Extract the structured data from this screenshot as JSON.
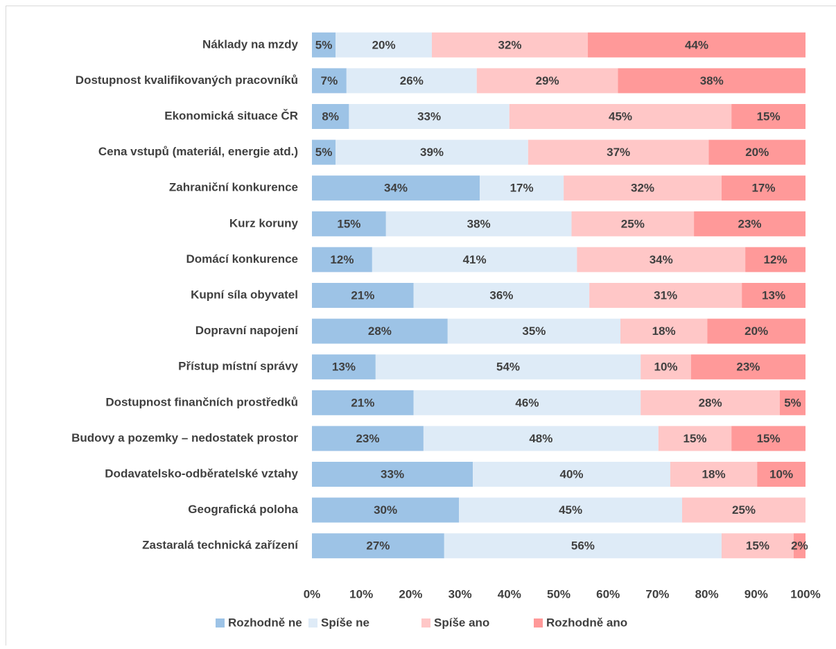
{
  "chart_data": {
    "type": "bar",
    "orientation": "horizontal",
    "stacked": true,
    "categories": [
      "Náklady na mzdy",
      "Dostupnost kvalifikovaných pracovníků",
      "Ekonomická situace ČR",
      "Cena vstupů (materiál, energie atd.)",
      "Zahraniční konkurence",
      "Kurz koruny",
      "Domácí konkurence",
      "Kupní síla obyvatel",
      "Dopravní napojení",
      "Přístup místní správy",
      "Dostupnost finančních prostředků",
      "Budovy a pozemky – nedostatek prostor",
      "Dodavatelsko-odběratelské vztahy",
      "Geografická poloha",
      "Zastaralá technická zařízení"
    ],
    "series": [
      {
        "name": "Rozhodně ne",
        "color": "#9dc3e6",
        "values": [
          4.8,
          7.0,
          7.5,
          4.8,
          34.0,
          15.0,
          12.2,
          20.6,
          27.5,
          12.9,
          20.6,
          22.6,
          32.6,
          29.8,
          26.8
        ],
        "value_labels": [
          "5%",
          "7%",
          "8%",
          "5%",
          "34%",
          "15%",
          "12%",
          "21%",
          "28%",
          "13%",
          "21%",
          "23%",
          "33%",
          "30%",
          "27%"
        ]
      },
      {
        "name": "Spíše ne",
        "color": "#deebf7",
        "values": [
          19.5,
          26.4,
          32.5,
          39.0,
          17.0,
          37.6,
          41.5,
          35.6,
          35.0,
          53.7,
          46.0,
          47.6,
          40.0,
          45.2,
          56.2
        ],
        "value_labels": [
          "20%",
          "26%",
          "33%",
          "39%",
          "17%",
          "38%",
          "41%",
          "36%",
          "35%",
          "54%",
          "46%",
          "48%",
          "40%",
          "45%",
          "56%"
        ]
      },
      {
        "name": "Spíše ano",
        "color": "#ffc7c7",
        "values": [
          31.6,
          28.6,
          45.0,
          36.6,
          32.0,
          24.8,
          34.1,
          30.9,
          17.6,
          10.2,
          28.2,
          14.8,
          17.6,
          25.0,
          14.6
        ],
        "value_labels": [
          "32%",
          "29%",
          "45%",
          "37%",
          "32%",
          "25%",
          "34%",
          "31%",
          "18%",
          "10%",
          "28%",
          "15%",
          "18%",
          "25%",
          "15%"
        ]
      },
      {
        "name": "Rozhodně ano",
        "color": "#ff9999",
        "values": [
          44.1,
          38.0,
          15.0,
          19.6,
          17.0,
          22.6,
          12.2,
          12.9,
          19.9,
          23.2,
          5.2,
          15.0,
          9.8,
          null,
          2.4
        ],
        "value_labels": [
          "44%",
          "38%",
          "15%",
          "20%",
          "17%",
          "23%",
          "12%",
          "13%",
          "20%",
          "23%",
          "5%",
          "15%",
          "10%",
          null,
          "2%"
        ]
      }
    ],
    "xlim": [
      0,
      100
    ],
    "xticks": [
      {
        "value": 0,
        "label": "0%"
      },
      {
        "value": 10,
        "label": "10%"
      },
      {
        "value": 20,
        "label": "20%"
      },
      {
        "value": 30,
        "label": "30%"
      },
      {
        "value": 40,
        "label": "40%"
      },
      {
        "value": 50,
        "label": "50%"
      },
      {
        "value": 60,
        "label": "60%"
      },
      {
        "value": 70,
        "label": "70%"
      },
      {
        "value": 80,
        "label": "80%"
      },
      {
        "value": 90,
        "label": "90%"
      },
      {
        "value": 100,
        "label": "100%"
      }
    ],
    "legend": "bottom"
  }
}
